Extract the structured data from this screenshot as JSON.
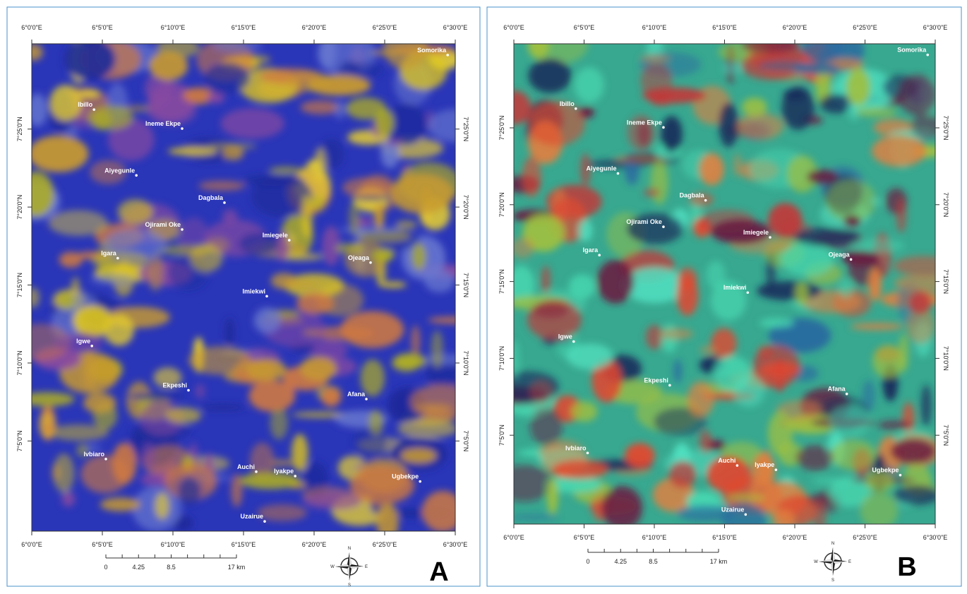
{
  "panels": [
    {
      "letter": "A",
      "x_labels": [
        "6°0'0\"E",
        "6°5'0\"E",
        "6°10'0\"E",
        "6°15'0\"E",
        "6°20'0\"E",
        "6°25'0\"E",
        "6°30'0\"E"
      ],
      "y_labels": [
        "7°25'0\"N",
        "7°20'0\"N",
        "7°15'0\"N",
        "7°10'0\"N",
        "7°5'0\"N"
      ],
      "places": [
        "Ibillo",
        "Ineme Ekpe",
        "Aiyegunle",
        "Dagbala",
        "Ojirami Oke",
        "Imiegele",
        "Igara",
        "Ojeaga",
        "Imiekwi",
        "Igwe",
        "Ekpeshi",
        "Afana",
        "Ivbiaro",
        "Auchi",
        "Iyakpe",
        "Ugbekpe",
        "Uzairue",
        "Somorika"
      ],
      "scale_labels": [
        "0",
        "4.25",
        "8.5",
        "17 km"
      ],
      "compass": [
        "N",
        "E",
        "S",
        "W"
      ]
    },
    {
      "letter": "B",
      "x_labels": [
        "6°0'0\"E",
        "6°5'0\"E",
        "6°10'0\"E",
        "6°15'0\"E",
        "6°20'0\"E",
        "6°25'0\"E",
        "6°30'0\"E"
      ],
      "y_labels": [
        "7°25'0\"N",
        "7°20'0\"N",
        "7°15'0\"N",
        "7°10'0\"N",
        "7°5'0\"N"
      ],
      "places": [
        "Ibillo",
        "Ineme Ekpe",
        "Aiyegunle",
        "Dagbala",
        "Ojirami Oke",
        "Imiegele",
        "Igara",
        "Ojeaga",
        "Imiekwi",
        "Igwe",
        "Ekpeshi",
        "Afana",
        "Ivbiaro",
        "Auchi",
        "Iyakpe",
        "Ugbekpe",
        "Uzairue",
        "Somorika"
      ],
      "scale_labels": [
        "0",
        "4.25",
        "8.5",
        "17 km"
      ],
      "compass": [
        "N",
        "E",
        "S",
        "W"
      ]
    }
  ]
}
